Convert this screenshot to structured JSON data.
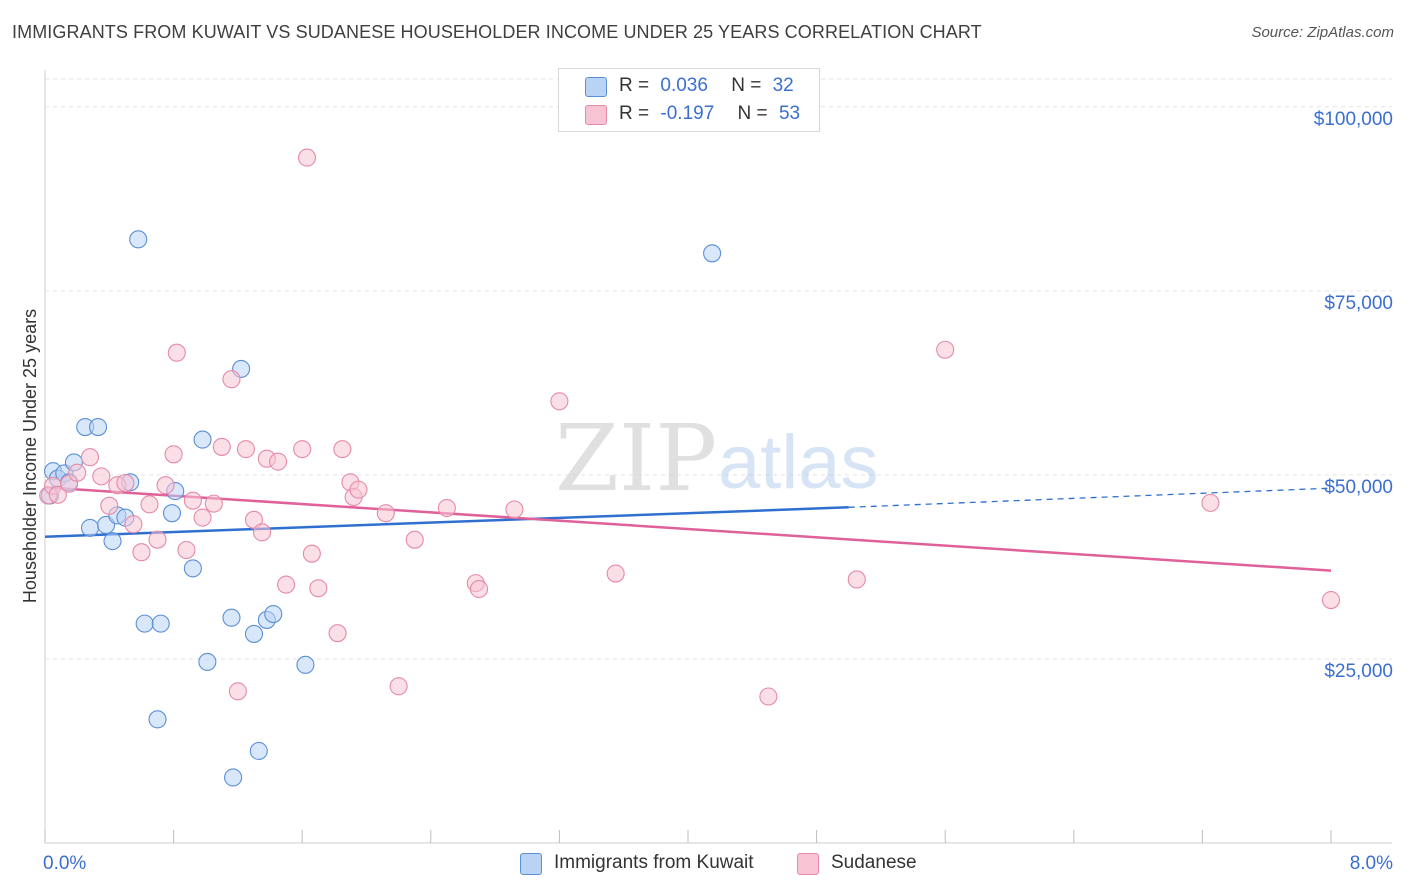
{
  "header": {
    "title": "IMMIGRANTS FROM KUWAIT VS SUDANESE HOUSEHOLDER INCOME UNDER 25 YEARS CORRELATION CHART",
    "source": "Source: ZipAtlas.com"
  },
  "legend": {
    "rows": [
      {
        "r_label": "R =",
        "r_value": "0.036",
        "n_label": "N =",
        "n_value": "32"
      },
      {
        "r_label": "R =",
        "r_value": "-0.197",
        "n_label": "N =",
        "n_value": "53"
      }
    ]
  },
  "watermark": {
    "zip": "ZIP",
    "atlas": "atlas"
  },
  "colors": {
    "kuwait_fill": "#b9d3f5",
    "kuwait_stroke": "#5b8fd6",
    "kuwait_line": "#2f6fd0",
    "sudanese_fill": "#f8c4d4",
    "sudanese_stroke": "#e58aa8",
    "sudanese_line": "#e0609a",
    "axis_label": "#3a6fd0",
    "grid": "#e3e3e3"
  },
  "chart_data": {
    "type": "scatter",
    "title": "IMMIGRANTS FROM KUWAIT VS SUDANESE HOUSEHOLDER INCOME UNDER 25 YEARS CORRELATION CHART",
    "xlabel": "",
    "ylabel": "Householder Income Under 25 years",
    "xlim": [
      0,
      8
    ],
    "ylim": [
      0,
      105000
    ],
    "x_tick_labels": [
      "0.0%",
      "8.0%"
    ],
    "y_ticks": [
      25000,
      50000,
      75000,
      100000
    ],
    "y_tick_labels": [
      "$25,000",
      "$50,000",
      "$75,000",
      "$100,000"
    ],
    "series": [
      {
        "name": "Immigrants from Kuwait",
        "points": [
          [
            0.05,
            50500
          ],
          [
            0.08,
            49500
          ],
          [
            0.12,
            50200
          ],
          [
            0.15,
            49000
          ],
          [
            0.18,
            51700
          ],
          [
            0.25,
            56500
          ],
          [
            0.33,
            56500
          ],
          [
            0.28,
            42800
          ],
          [
            0.38,
            43200
          ],
          [
            0.42,
            41000
          ],
          [
            0.45,
            44500
          ],
          [
            0.5,
            44200
          ],
          [
            0.53,
            49000
          ],
          [
            0.58,
            82000
          ],
          [
            0.62,
            29800
          ],
          [
            0.7,
            16800
          ],
          [
            0.72,
            29800
          ],
          [
            0.79,
            44800
          ],
          [
            0.81,
            47800
          ],
          [
            0.92,
            37300
          ],
          [
            0.98,
            54800
          ],
          [
            1.01,
            24600
          ],
          [
            1.16,
            30600
          ],
          [
            1.17,
            8900
          ],
          [
            1.22,
            64400
          ],
          [
            1.3,
            28400
          ],
          [
            1.33,
            12500
          ],
          [
            1.38,
            30300
          ],
          [
            1.42,
            31100
          ],
          [
            1.62,
            24200
          ],
          [
            4.15,
            80100
          ],
          [
            0.03,
            47200
          ]
        ]
      },
      {
        "name": "Sudanese",
        "points": [
          [
            0.02,
            47200
          ],
          [
            0.05,
            48500
          ],
          [
            0.08,
            47300
          ],
          [
            0.15,
            48800
          ],
          [
            0.2,
            50300
          ],
          [
            0.28,
            52400
          ],
          [
            0.35,
            49800
          ],
          [
            0.4,
            45800
          ],
          [
            0.45,
            48600
          ],
          [
            0.5,
            48900
          ],
          [
            0.55,
            43300
          ],
          [
            0.6,
            39500
          ],
          [
            0.65,
            46000
          ],
          [
            0.7,
            41200
          ],
          [
            0.75,
            48600
          ],
          [
            0.8,
            52800
          ],
          [
            0.82,
            66600
          ],
          [
            0.88,
            39800
          ],
          [
            0.92,
            46500
          ],
          [
            0.98,
            44200
          ],
          [
            1.05,
            46100
          ],
          [
            1.1,
            53800
          ],
          [
            1.16,
            63000
          ],
          [
            1.2,
            20600
          ],
          [
            1.25,
            53500
          ],
          [
            1.3,
            43900
          ],
          [
            1.35,
            42200
          ],
          [
            1.38,
            52200
          ],
          [
            1.45,
            51800
          ],
          [
            1.5,
            35100
          ],
          [
            1.6,
            53500
          ],
          [
            1.63,
            93100
          ],
          [
            1.66,
            39300
          ],
          [
            1.7,
            34600
          ],
          [
            1.82,
            28500
          ],
          [
            1.85,
            53500
          ],
          [
            1.9,
            49000
          ],
          [
            1.92,
            47000
          ],
          [
            1.95,
            48000
          ],
          [
            2.12,
            44800
          ],
          [
            2.2,
            21300
          ],
          [
            2.3,
            41200
          ],
          [
            2.5,
            45500
          ],
          [
            2.68,
            35300
          ],
          [
            2.7,
            34500
          ],
          [
            2.92,
            45300
          ],
          [
            3.2,
            60000
          ],
          [
            3.55,
            36600
          ],
          [
            4.5,
            19900
          ],
          [
            5.05,
            35800
          ],
          [
            5.6,
            67000
          ],
          [
            7.25,
            46200
          ],
          [
            8.0,
            33000
          ]
        ]
      }
    ],
    "trendlines": [
      {
        "series": "Immigrants from Kuwait",
        "x_start": 0.0,
        "y_start": 41600,
        "x_solid_end": 5.0,
        "y_solid_end": 45600,
        "x_end": 8.0,
        "y_end": 48200
      },
      {
        "series": "Sudanese",
        "x_start": 0.0,
        "y_start": 48300,
        "x_end": 8.0,
        "y_end": 37000
      }
    ],
    "grid": true,
    "legend_position": "top-center"
  }
}
